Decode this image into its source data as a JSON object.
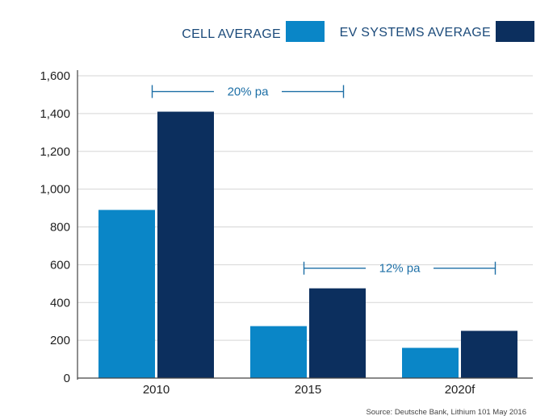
{
  "chart_data": {
    "type": "bar",
    "categories": [
      "2010",
      "2015",
      "2020f"
    ],
    "series": [
      {
        "name": "CELL AVERAGE",
        "color": "#0a86c7",
        "values": [
          890,
          275,
          160
        ]
      },
      {
        "name": "EV SYSTEMS AVERAGE",
        "color": "#0c2f5e",
        "values": [
          1410,
          475,
          250
        ]
      }
    ],
    "ylim": [
      0,
      1600
    ],
    "yticks": [
      "0",
      "200",
      "400",
      "600",
      "800",
      "1,000",
      "1,200",
      "1,400",
      "1,600"
    ],
    "ytick_values": [
      0,
      200,
      400,
      600,
      800,
      1000,
      1200,
      1400,
      1600
    ],
    "grid": true,
    "legend": "top-right",
    "annotations": [
      {
        "label": "20% pa",
        "from": "2010",
        "to": "2015"
      },
      {
        "label": "12% pa",
        "from": "2015",
        "to": "2020f"
      }
    ],
    "source": "Source: Deutsche Bank, Lithium 101 May 2016"
  }
}
